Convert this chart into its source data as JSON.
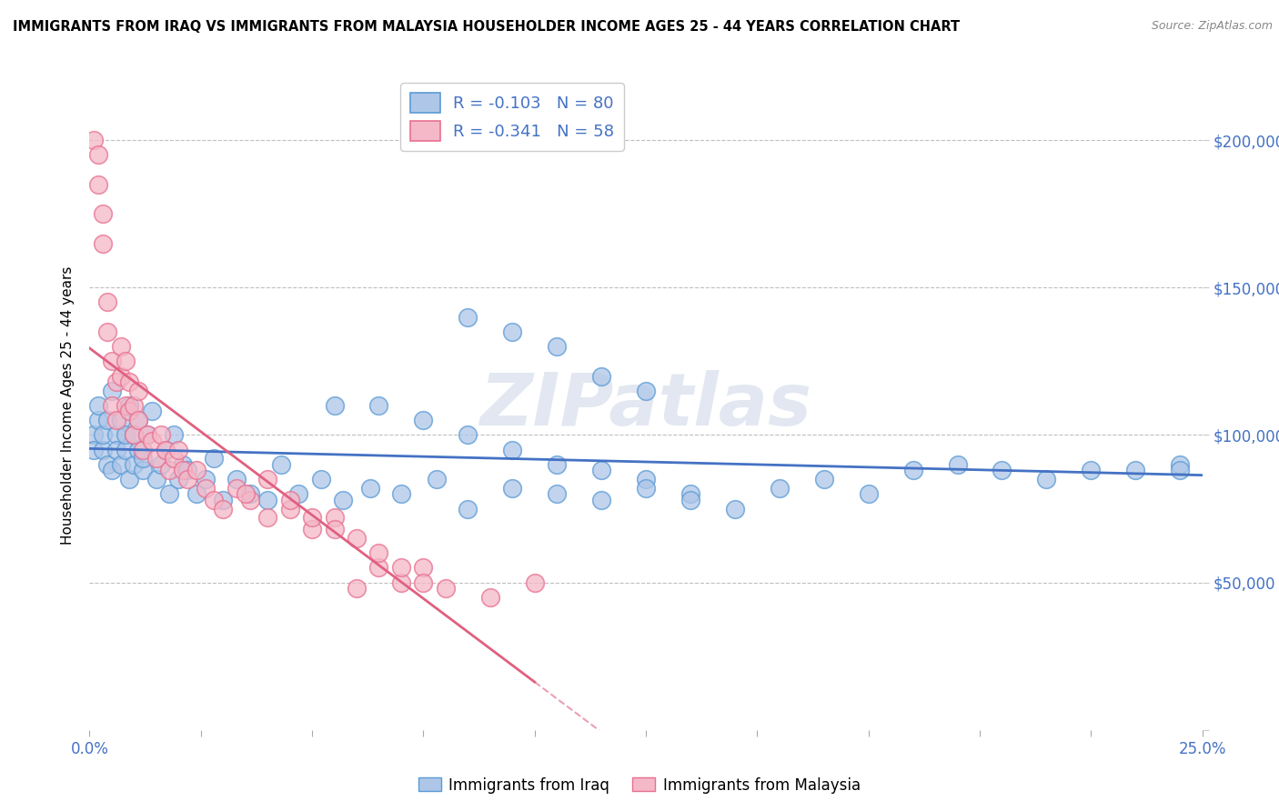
{
  "title": "IMMIGRANTS FROM IRAQ VS IMMIGRANTS FROM MALAYSIA HOUSEHOLDER INCOME AGES 25 - 44 YEARS CORRELATION CHART",
  "source": "Source: ZipAtlas.com",
  "ylabel": "Householder Income Ages 25 - 44 years",
  "xlim": [
    0.0,
    0.25
  ],
  "ylim": [
    0,
    220000
  ],
  "iraq_color": "#aec6e8",
  "iraq_edge_color": "#5b9bd5",
  "malaysia_color": "#f4b8c8",
  "malaysia_edge_color": "#e87090",
  "iraq_R": -0.103,
  "iraq_N": 80,
  "malaysia_R": -0.341,
  "malaysia_N": 58,
  "iraq_line_color": "#4472c4",
  "malaysia_line_color": "#e06080",
  "watermark": "ZIPatlas",
  "background_color": "#ffffff",
  "grid_color": "#c0c0c0",
  "iraq_x": [
    0.001,
    0.001,
    0.002,
    0.002,
    0.003,
    0.003,
    0.004,
    0.004,
    0.005,
    0.005,
    0.006,
    0.006,
    0.007,
    0.007,
    0.008,
    0.008,
    0.009,
    0.009,
    0.01,
    0.01,
    0.011,
    0.011,
    0.012,
    0.012,
    0.013,
    0.014,
    0.015,
    0.016,
    0.017,
    0.018,
    0.019,
    0.02,
    0.021,
    0.022,
    0.024,
    0.026,
    0.028,
    0.03,
    0.033,
    0.036,
    0.04,
    0.043,
    0.047,
    0.052,
    0.057,
    0.063,
    0.07,
    0.078,
    0.085,
    0.095,
    0.105,
    0.115,
    0.125,
    0.135,
    0.145,
    0.155,
    0.165,
    0.175,
    0.185,
    0.195,
    0.205,
    0.215,
    0.225,
    0.235,
    0.245,
    0.085,
    0.095,
    0.105,
    0.115,
    0.125,
    0.055,
    0.065,
    0.075,
    0.085,
    0.095,
    0.105,
    0.115,
    0.125,
    0.135,
    0.245
  ],
  "iraq_y": [
    100000,
    95000,
    105000,
    110000,
    95000,
    100000,
    90000,
    105000,
    115000,
    88000,
    100000,
    95000,
    105000,
    90000,
    95000,
    100000,
    85000,
    110000,
    90000,
    100000,
    95000,
    105000,
    88000,
    92000,
    100000,
    108000,
    85000,
    90000,
    95000,
    80000,
    100000,
    85000,
    90000,
    88000,
    80000,
    85000,
    92000,
    78000,
    85000,
    80000,
    78000,
    90000,
    80000,
    85000,
    78000,
    82000,
    80000,
    85000,
    75000,
    82000,
    80000,
    78000,
    85000,
    80000,
    75000,
    82000,
    85000,
    80000,
    88000,
    90000,
    88000,
    85000,
    88000,
    88000,
    90000,
    140000,
    135000,
    130000,
    120000,
    115000,
    110000,
    110000,
    105000,
    100000,
    95000,
    90000,
    88000,
    82000,
    78000,
    88000
  ],
  "malaysia_x": [
    0.001,
    0.002,
    0.002,
    0.003,
    0.003,
    0.004,
    0.004,
    0.005,
    0.005,
    0.006,
    0.006,
    0.007,
    0.007,
    0.008,
    0.008,
    0.009,
    0.009,
    0.01,
    0.01,
    0.011,
    0.011,
    0.012,
    0.013,
    0.014,
    0.015,
    0.016,
    0.017,
    0.018,
    0.019,
    0.02,
    0.021,
    0.022,
    0.024,
    0.026,
    0.028,
    0.03,
    0.033,
    0.036,
    0.04,
    0.045,
    0.05,
    0.055,
    0.06,
    0.065,
    0.07,
    0.075,
    0.08,
    0.09,
    0.1,
    0.035,
    0.04,
    0.045,
    0.05,
    0.055,
    0.06,
    0.065,
    0.07,
    0.075
  ],
  "malaysia_y": [
    200000,
    195000,
    185000,
    175000,
    165000,
    135000,
    145000,
    110000,
    125000,
    105000,
    118000,
    130000,
    120000,
    110000,
    125000,
    108000,
    118000,
    100000,
    110000,
    115000,
    105000,
    95000,
    100000,
    98000,
    92000,
    100000,
    95000,
    88000,
    92000,
    95000,
    88000,
    85000,
    88000,
    82000,
    78000,
    75000,
    82000,
    78000,
    72000,
    75000,
    68000,
    72000,
    48000,
    55000,
    50000,
    55000,
    48000,
    45000,
    50000,
    80000,
    85000,
    78000,
    72000,
    68000,
    65000,
    60000,
    55000,
    50000
  ]
}
